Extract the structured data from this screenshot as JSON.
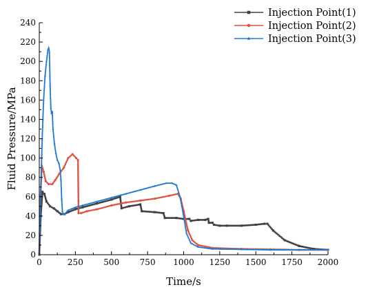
{
  "chart_data": {
    "type": "line",
    "title": "",
    "xlabel": "Time/s",
    "ylabel": "Fluid Pressure/MPa",
    "xlim": [
      0,
      2000
    ],
    "ylim": [
      0,
      240
    ],
    "xticks": [
      "0",
      "250",
      "500",
      "750",
      "1000",
      "1250",
      "1500",
      "1750",
      "2000"
    ],
    "yticks": [
      "0",
      "20",
      "40",
      "60",
      "80",
      "100",
      "120",
      "140",
      "160",
      "180",
      "200",
      "220",
      "240"
    ],
    "grid": false,
    "legend_position": "top-right",
    "series": [
      {
        "name": "Injection Point(1)",
        "color": "#404040",
        "marker": "square",
        "points": [
          [
            0,
            0
          ],
          [
            10,
            40
          ],
          [
            22,
            65
          ],
          [
            35,
            63
          ],
          [
            50,
            55
          ],
          [
            75,
            50
          ],
          [
            100,
            48
          ],
          [
            125,
            45
          ],
          [
            150,
            42
          ],
          [
            175,
            42
          ],
          [
            200,
            44
          ],
          [
            250,
            47
          ],
          [
            300,
            49
          ],
          [
            400,
            53
          ],
          [
            500,
            57
          ],
          [
            560,
            60
          ],
          [
            570,
            48
          ],
          [
            620,
            50
          ],
          [
            700,
            52
          ],
          [
            710,
            45
          ],
          [
            800,
            44
          ],
          [
            860,
            43
          ],
          [
            870,
            38
          ],
          [
            950,
            38
          ],
          [
            1000,
            37
          ],
          [
            1040,
            37
          ],
          [
            1050,
            35
          ],
          [
            1100,
            36
          ],
          [
            1150,
            36
          ],
          [
            1170,
            37
          ],
          [
            1175,
            33
          ],
          [
            1200,
            33
          ],
          [
            1210,
            31
          ],
          [
            1250,
            30
          ],
          [
            1300,
            30
          ],
          [
            1400,
            30
          ],
          [
            1500,
            31
          ],
          [
            1560,
            32
          ],
          [
            1580,
            32
          ],
          [
            1620,
            25
          ],
          [
            1700,
            15
          ],
          [
            1800,
            9
          ],
          [
            1900,
            6
          ],
          [
            2000,
            5
          ]
        ]
      },
      {
        "name": "Injection Point(2)",
        "color": "#e05040",
        "marker": "circle",
        "points": [
          [
            0,
            0
          ],
          [
            8,
            60
          ],
          [
            18,
            92
          ],
          [
            30,
            86
          ],
          [
            45,
            76
          ],
          [
            65,
            73
          ],
          [
            90,
            73
          ],
          [
            110,
            77
          ],
          [
            140,
            84
          ],
          [
            170,
            90
          ],
          [
            200,
            100
          ],
          [
            230,
            104
          ],
          [
            255,
            100
          ],
          [
            268,
            98
          ],
          [
            272,
            43
          ],
          [
            290,
            43
          ],
          [
            330,
            45
          ],
          [
            400,
            47
          ],
          [
            500,
            51
          ],
          [
            600,
            54
          ],
          [
            700,
            56
          ],
          [
            800,
            58
          ],
          [
            900,
            61
          ],
          [
            960,
            63
          ],
          [
            980,
            58
          ],
          [
            1000,
            45
          ],
          [
            1030,
            25
          ],
          [
            1060,
            15
          ],
          [
            1100,
            10
          ],
          [
            1200,
            7
          ],
          [
            1400,
            6
          ],
          [
            1600,
            5.5
          ],
          [
            1800,
            5
          ],
          [
            2000,
            5
          ]
        ]
      },
      {
        "name": "Injection Point(3)",
        "color": "#1f78d2",
        "marker": "triangle",
        "points": [
          [
            0,
            0
          ],
          [
            5,
            30
          ],
          [
            10,
            60
          ],
          [
            15,
            90
          ],
          [
            20,
            120
          ],
          [
            25,
            140
          ],
          [
            30,
            160
          ],
          [
            40,
            185
          ],
          [
            50,
            200
          ],
          [
            60,
            212
          ],
          [
            65,
            214
          ],
          [
            70,
            210
          ],
          [
            75,
            175
          ],
          [
            80,
            152
          ],
          [
            85,
            146
          ],
          [
            90,
            148
          ],
          [
            95,
            130
          ],
          [
            105,
            115
          ],
          [
            115,
            105
          ],
          [
            125,
            98
          ],
          [
            135,
            95
          ],
          [
            145,
            88
          ],
          [
            150,
            78
          ],
          [
            155,
            58
          ],
          [
            160,
            45
          ],
          [
            165,
            42
          ],
          [
            175,
            42
          ],
          [
            200,
            46
          ],
          [
            250,
            49
          ],
          [
            300,
            51
          ],
          [
            400,
            55
          ],
          [
            500,
            59
          ],
          [
            600,
            63
          ],
          [
            700,
            67
          ],
          [
            800,
            71
          ],
          [
            880,
            74
          ],
          [
            920,
            74
          ],
          [
            950,
            72
          ],
          [
            975,
            60
          ],
          [
            1000,
            40
          ],
          [
            1020,
            22
          ],
          [
            1050,
            12
          ],
          [
            1100,
            8
          ],
          [
            1200,
            6
          ],
          [
            1400,
            5.5
          ],
          [
            1600,
            5
          ],
          [
            1800,
            5
          ],
          [
            2000,
            5
          ]
        ]
      }
    ]
  }
}
